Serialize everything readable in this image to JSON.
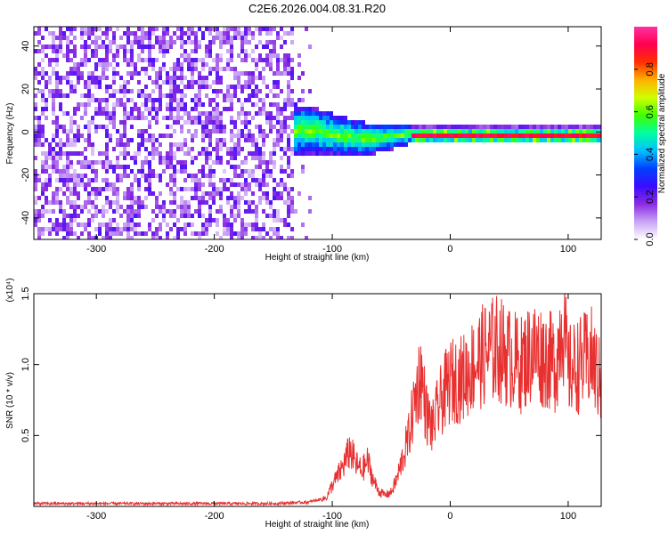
{
  "title": "C2E6.2026.004.08.31.R20",
  "chart_data": [
    {
      "type": "heatmap",
      "xlabel": "Height of straight line (km)",
      "ylabel": "Frequency (Hz)",
      "xlim": [
        -353,
        128
      ],
      "ylim": [
        -50,
        49
      ],
      "xticks": [
        -300,
        -200,
        -100,
        0,
        100
      ],
      "xtick_labels": [
        "-300",
        "-200",
        "-100",
        "0",
        "100"
      ],
      "yticks": [
        -40,
        -20,
        0,
        20,
        40
      ],
      "ytick_labels": [
        "-40",
        "-20",
        "0",
        "20",
        "40"
      ],
      "colorbar": {
        "label": "Normalized spectral amplitude",
        "range": [
          0,
          1
        ],
        "ticks": [
          0.0,
          0.2,
          0.4,
          0.6,
          0.8
        ],
        "tick_labels": [
          "0.0",
          "0.2",
          "0.4",
          "0.6",
          "0.8"
        ],
        "colormap": [
          "#ffffff",
          "#c9a3f5",
          "#8a2be2",
          "#3a0cff",
          "#0040ff",
          "#00c0ff",
          "#00ffa0",
          "#40ff00",
          "#d0ff00",
          "#ffb000",
          "#ff3000",
          "#ff0050",
          "#ff30a0"
        ]
      },
      "regions": [
        {
          "x": [
            -353,
            -135
          ],
          "f_range": [
            -50,
            49
          ],
          "description_level": 0.15
        },
        {
          "x": [
            -135,
            -35
          ],
          "f_center": 0,
          "f_spread": 12,
          "description_level": 0.45
        },
        {
          "x": [
            -35,
            128
          ],
          "f_center": 0,
          "f_spread": 3,
          "description_level": 0.9
        }
      ]
    },
    {
      "type": "line",
      "xlabel": "Height of straight line (km)",
      "ylabel": "SNR (10 * v/v)",
      "multiplier": "(x10⁴)",
      "color": "#e83030",
      "xlim": [
        -353,
        128
      ],
      "ylim": [
        0,
        1.5
      ],
      "xticks": [
        -300,
        -200,
        -100,
        0,
        100
      ],
      "xtick_labels": [
        "-300",
        "-200",
        "-100",
        "0",
        "100"
      ],
      "yticks": [
        0.5,
        1.0,
        1.5
      ],
      "ytick_labels": [
        "0.5",
        "1.0",
        "1.5"
      ],
      "x": [
        -353,
        -300,
        -250,
        -200,
        -150,
        -120,
        -105,
        -100,
        -95,
        -90,
        -85,
        -80,
        -75,
        -70,
        -65,
        -60,
        -55,
        -50,
        -45,
        -40,
        -35,
        -30,
        -25,
        -20,
        -15,
        -10,
        -5,
        0,
        10,
        20,
        30,
        40,
        50,
        60,
        70,
        80,
        90,
        95,
        100,
        110,
        120,
        128
      ],
      "y": [
        0.02,
        0.02,
        0.02,
        0.02,
        0.02,
        0.03,
        0.06,
        0.15,
        0.22,
        0.3,
        0.4,
        0.3,
        0.25,
        0.32,
        0.18,
        0.1,
        0.08,
        0.1,
        0.2,
        0.35,
        0.5,
        0.75,
        0.95,
        0.65,
        0.55,
        0.7,
        0.8,
        0.88,
        0.9,
        1.0,
        1.08,
        1.12,
        1.05,
        1.0,
        1.1,
        1.05,
        1.0,
        1.35,
        0.95,
        1.0,
        1.05,
        0.85
      ]
    }
  ]
}
